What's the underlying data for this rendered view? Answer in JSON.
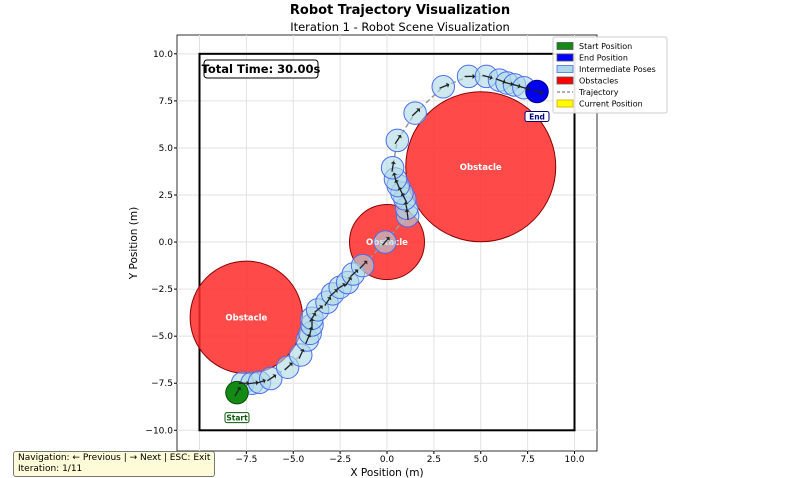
{
  "chart_data": {
    "type": "scatter",
    "title": "Robot Trajectory Visualization",
    "subtitle": "Iteration 1 - Robot Scene Visualization",
    "xlabel": "X Position (m)",
    "ylabel": "Y Position (m)",
    "xlim": [
      -11.2,
      11.2
    ],
    "ylim": [
      -11.1,
      11
    ],
    "xticks": [
      -10,
      -7.5,
      -5,
      -2.5,
      0,
      2.5,
      5,
      7.5,
      10
    ],
    "yticks": [
      -10,
      -7.5,
      -5,
      -2.5,
      0,
      2.5,
      5,
      7.5,
      10
    ],
    "xtick_labels": [
      "−10.0",
      "−7.5",
      "−5.0",
      "−2.5",
      "0.0",
      "2.5",
      "5.0",
      "7.5",
      "10.0"
    ],
    "ytick_labels": [
      "−10.0",
      "−7.5",
      "−5.0",
      "−2.5",
      "0.0",
      "2.5",
      "5.0",
      "7.5",
      "10.0"
    ],
    "grid": true,
    "boundary": [
      -10,
      10
    ],
    "total_time": "Total Time: 30.00s",
    "start": {
      "x": -8,
      "y": -8,
      "label": "Start"
    },
    "end": {
      "x": 8,
      "y": 8,
      "label": "End"
    },
    "pose_radius": 0.6,
    "obstacles": [
      {
        "x": -7.5,
        "y": -4,
        "r": 3,
        "label": "Obstacle"
      },
      {
        "x": 0,
        "y": 0,
        "r": 2,
        "label": "Obstacle"
      },
      {
        "x": 5,
        "y": 4,
        "r": 4,
        "label": "Obstacle"
      }
    ],
    "poses": [
      [
        -7.7,
        -7.5
      ],
      [
        -7.2,
        -7.5
      ],
      [
        -6.8,
        -7.45
      ],
      [
        -6.2,
        -7.25
      ],
      [
        -5.3,
        -6.65
      ],
      [
        -4.6,
        -6
      ],
      [
        -4.25,
        -5.2
      ],
      [
        -4.1,
        -4.85
      ],
      [
        -4,
        -4.4
      ],
      [
        -4,
        -4.05
      ],
      [
        -3.7,
        -3.6
      ],
      [
        -3.2,
        -3.2
      ],
      [
        -2.9,
        -2.75
      ],
      [
        -2.5,
        -2.4
      ],
      [
        -2.1,
        -2.15
      ],
      [
        -1.8,
        -1.7
      ],
      [
        -1.3,
        -1.25
      ],
      [
        -0.1,
        0
      ],
      [
        1.1,
        1.4
      ],
      [
        1.05,
        1.8
      ],
      [
        0.95,
        2.3
      ],
      [
        0.8,
        2.6
      ],
      [
        0.6,
        3
      ],
      [
        0.45,
        3.35
      ],
      [
        0.3,
        3.95
      ],
      [
        0.55,
        5.4
      ],
      [
        1.5,
        6.85
      ],
      [
        3,
        8.25
      ],
      [
        4.35,
        8.8
      ],
      [
        5.3,
        8.8
      ],
      [
        6,
        8.6
      ],
      [
        6.4,
        8.45
      ],
      [
        6.8,
        8.35
      ],
      [
        7.3,
        8.2
      ]
    ],
    "legend": {
      "placement": "top-right",
      "entries": [
        {
          "label": "Start Position",
          "color": "#138a13"
        },
        {
          "label": "End Position",
          "color": "#0000ff"
        },
        {
          "label": "Intermediate Poses",
          "color": "#add8e6"
        },
        {
          "label": "Obstacles",
          "color": "#ff0000"
        },
        {
          "label": "Trajectory",
          "color": "#808080"
        },
        {
          "label": "Current Position",
          "color": "#ffff00"
        }
      ]
    }
  },
  "nav": {
    "line1": "Navigation: ← Previous | → Next | ESC: Exit",
    "line2": "Iteration: 1/11"
  }
}
